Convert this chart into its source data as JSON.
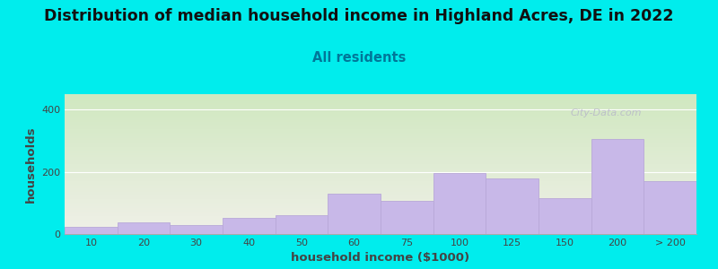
{
  "title": "Distribution of median household income in Highland Acres, DE in 2022",
  "subtitle": "All residents",
  "xlabel": "household income ($1000)",
  "ylabel": "households",
  "bar_labels": [
    "10",
    "20",
    "30",
    "40",
    "50",
    "60",
    "75",
    "100",
    "125",
    "150",
    "200",
    "> 200"
  ],
  "values": [
    22,
    38,
    28,
    52,
    60,
    130,
    108,
    195,
    178,
    115,
    305,
    170
  ],
  "bar_color": "#c8b8e8",
  "bar_edgecolor": "#b8a8d8",
  "background_color": "#00eded",
  "grad_top_color": "#d0e8c0",
  "grad_bottom_color": "#f0f0e8",
  "ylim": [
    0,
    450
  ],
  "yticks": [
    0,
    200,
    400
  ],
  "title_fontsize": 12.5,
  "subtitle_fontsize": 10.5,
  "axis_label_fontsize": 9.5,
  "tick_fontsize": 8,
  "watermark_text": "City-Data.com",
  "watermark_color": "#b8b8c8",
  "title_color": "#111111",
  "subtitle_color": "#007799",
  "axis_color": "#444444"
}
